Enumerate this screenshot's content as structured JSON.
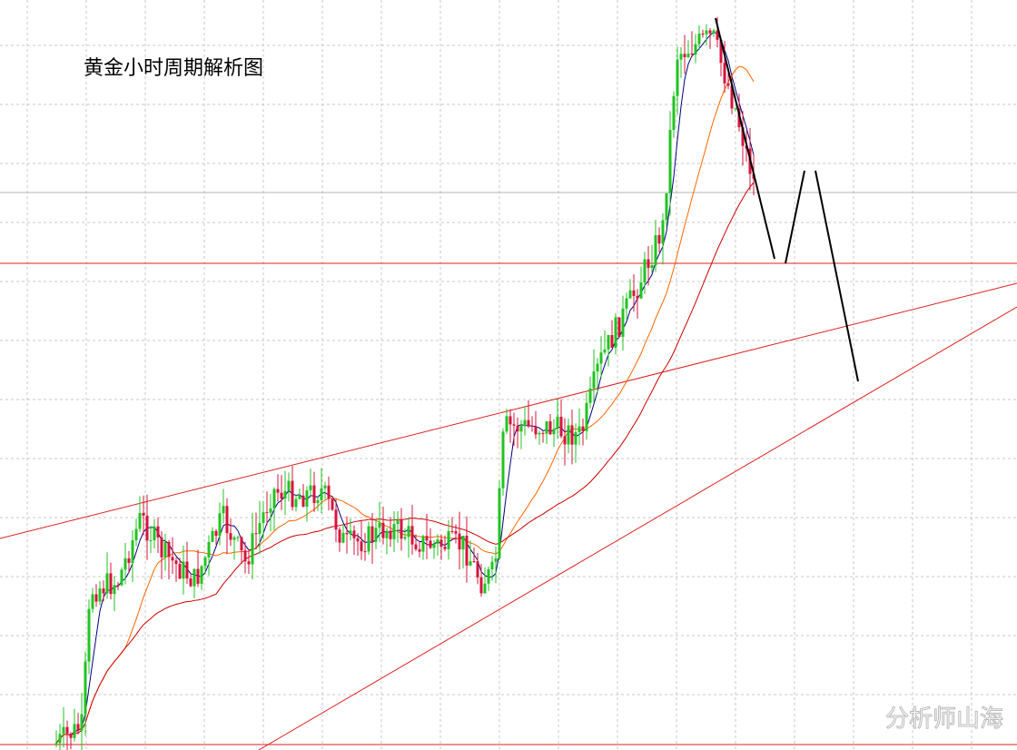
{
  "chart_data": {
    "type": "candlestick",
    "title": "黄金小时周期解析图",
    "watermark": "分析师山海"
  }
}
